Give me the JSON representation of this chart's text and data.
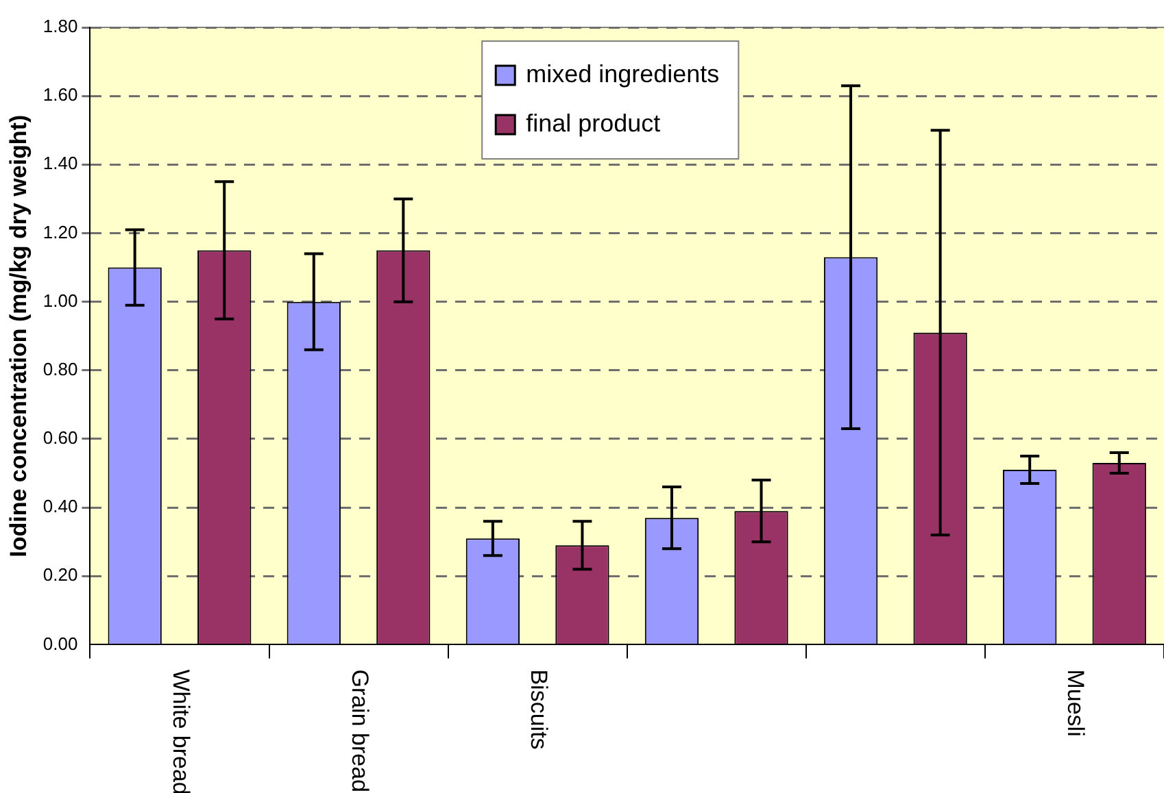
{
  "chart_data": {
    "type": "bar",
    "ylabel": "Iodine concentration (mg/kg dry weight)",
    "categories": [
      "White bread",
      "Grain bread",
      "Biscuits",
      null,
      null,
      "Muesli"
    ],
    "series": [
      {
        "name": "mixed ingredients",
        "color": "#9999ff",
        "values": [
          1.1,
          1.0,
          0.31,
          0.37,
          1.13,
          0.51
        ],
        "errors": [
          0.11,
          0.14,
          0.05,
          0.09,
          0.5,
          0.04
        ]
      },
      {
        "name": "final product",
        "color": "#993366",
        "values": [
          1.15,
          1.15,
          0.29,
          0.39,
          0.91,
          0.53
        ],
        "errors": [
          0.2,
          0.15,
          0.07,
          0.09,
          0.59,
          0.03
        ]
      }
    ],
    "ylim": [
      0,
      1.8
    ],
    "yticks": [
      {
        "value": 0,
        "label": "0.00"
      },
      {
        "value": 0.2,
        "label": "0.20"
      },
      {
        "value": 0.4,
        "label": "0.40"
      },
      {
        "value": 0.6,
        "label": "0.60"
      },
      {
        "value": 0.8,
        "label": "0.80"
      },
      {
        "value": 1.0,
        "label": "1.00"
      },
      {
        "value": 1.2,
        "label": "1.20"
      },
      {
        "value": 1.4,
        "label": "1.40"
      },
      {
        "value": 1.6,
        "label": "1.60"
      },
      {
        "value": 1.8,
        "label": "1.80"
      }
    ],
    "grid": "y",
    "legend": "top"
  }
}
